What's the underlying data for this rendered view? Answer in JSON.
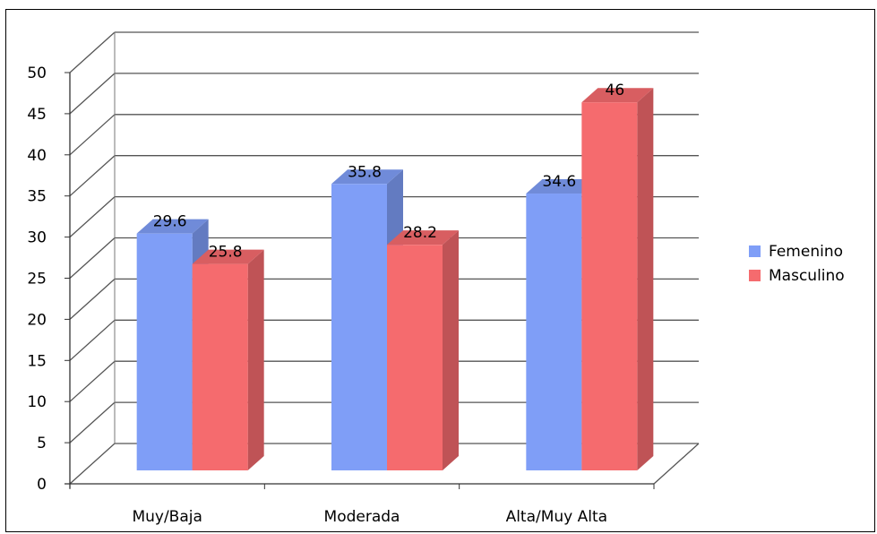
{
  "chart_data": {
    "type": "bar",
    "categories": [
      "Muy/Baja",
      "Moderada",
      "Alta/Muy Alta"
    ],
    "series": [
      {
        "name": "Femenino",
        "values": [
          29.6,
          35.8,
          34.6
        ]
      },
      {
        "name": "Masculino",
        "values": [
          25.8,
          28.2,
          46
        ]
      }
    ],
    "ylim": [
      0,
      50
    ],
    "yticks": [
      0,
      5,
      10,
      15,
      20,
      25,
      30,
      35,
      40,
      45,
      50
    ],
    "grid": true,
    "legend": "right",
    "colors": {
      "Femenino": "#7f9ef7",
      "Masculino": "#f56b6e"
    }
  }
}
